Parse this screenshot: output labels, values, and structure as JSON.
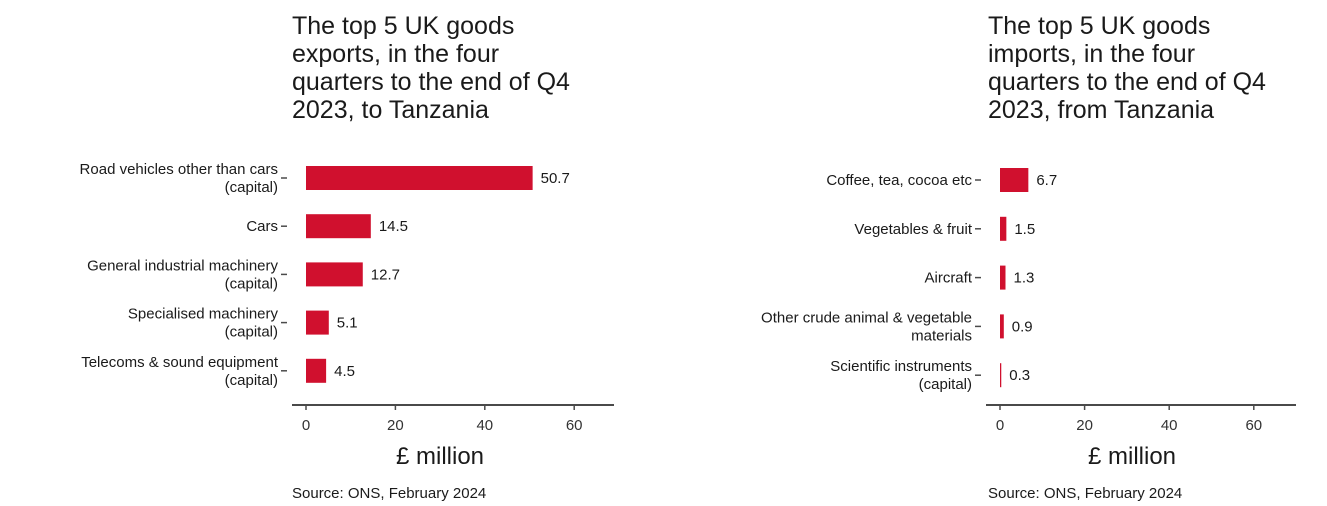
{
  "chart_data": [
    {
      "type": "bar",
      "orientation": "horizontal",
      "title_lines": [
        "The top 5 UK goods",
        "exports, in the four",
        "quarters to the end of Q4",
        "2023, to Tanzania"
      ],
      "categories": [
        [
          "Road vehicles other than cars",
          "(capital)"
        ],
        [
          "Cars"
        ],
        [
          "General industrial machinery",
          "(capital)"
        ],
        [
          "Specialised machinery",
          "(capital)"
        ],
        [
          "Telecoms & sound equipment",
          "(capital)"
        ]
      ],
      "values": [
        50.7,
        14.5,
        12.7,
        5.1,
        4.5
      ],
      "data_labels": [
        "50.7",
        "14.5",
        "12.7",
        "5.1",
        "4.5"
      ],
      "xticks": [
        0,
        20,
        40,
        60
      ],
      "xlim": [
        -2,
        68
      ],
      "xlabel": "£ million",
      "source": "Source: ONS, February 2024",
      "bar_color": "#d0102e",
      "grid": false
    },
    {
      "type": "bar",
      "orientation": "horizontal",
      "title_lines": [
        "The top 5 UK goods",
        "imports, in the four",
        "quarters to the end of Q4",
        "2023, from Tanzania"
      ],
      "categories": [
        [
          "Coffee, tea, cocoa etc"
        ],
        [
          "Vegetables & fruit"
        ],
        [
          "Aircraft"
        ],
        [
          "Other crude animal & vegetable",
          "materials"
        ],
        [
          "Scientific instruments",
          "(capital)"
        ]
      ],
      "values": [
        6.7,
        1.5,
        1.3,
        0.9,
        0.3
      ],
      "data_labels": [
        "6.7",
        "1.5",
        "1.3",
        "0.9",
        "0.3"
      ],
      "xticks": [
        0,
        20,
        40,
        60
      ],
      "xlim": [
        -2,
        68
      ],
      "xlabel": "£ million",
      "source": "Source: ONS, February 2024",
      "bar_color": "#d0102e",
      "grid": false
    }
  ]
}
